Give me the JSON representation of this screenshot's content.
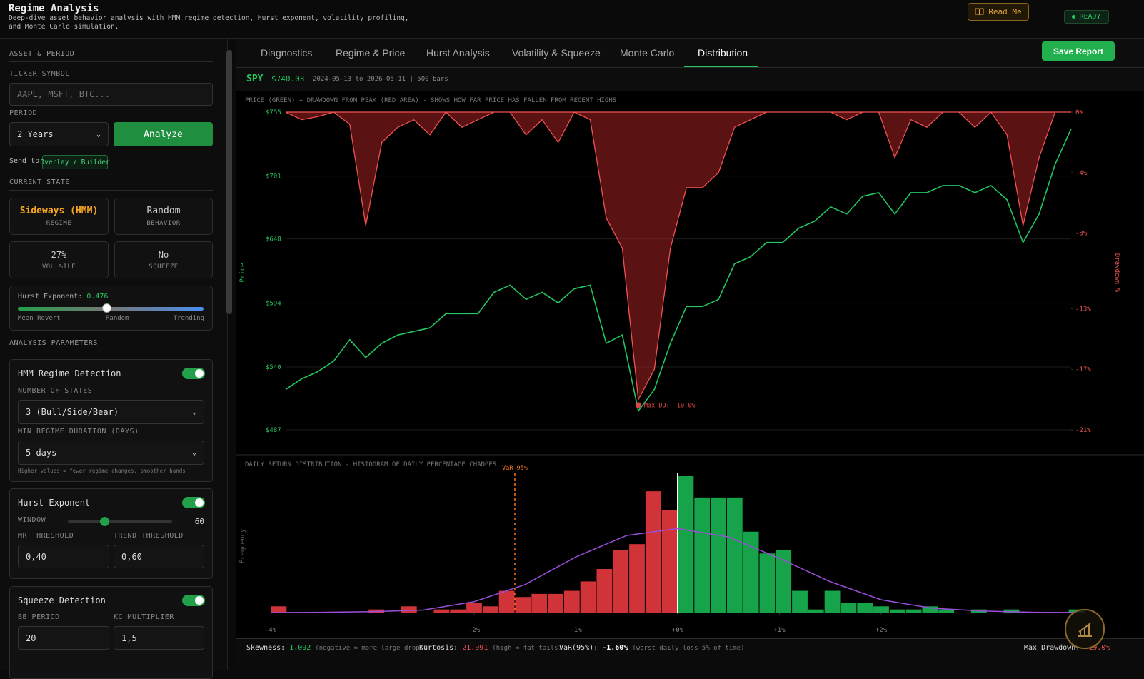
{
  "header": {
    "title": "Regime Analysis",
    "subtitle": "Deep-dive asset behavior analysis with HMM regime detection, Hurst exponent, volatility profiling, and Monte Carlo simulation.",
    "read_me": "Read Me",
    "status": "READY"
  },
  "sidebar": {
    "asset_heading": "ASSET & PERIOD",
    "ticker_label": "TICKER SYMBOL",
    "ticker_placeholder": "AAPL, MSFT, BTC...",
    "period_label": "PERIOD",
    "period": "2 Years",
    "analyze": "Analyze",
    "send_to": "Send to",
    "overlay": "Overlay / Builder",
    "state_heading": "CURRENT STATE",
    "cards": [
      {
        "value": "Sideways (HMM)",
        "label": "REGIME"
      },
      {
        "value": "Random",
        "label": "BEHAVIOR"
      },
      {
        "value": "27%",
        "label": "VOL %ILE"
      },
      {
        "value": "No",
        "label": "SQUEEZE"
      }
    ],
    "hurst": {
      "label": "Hurst Exponent:",
      "value": 0.476,
      "scale": [
        "Mean Revert",
        "Random",
        "Trending"
      ]
    },
    "params_heading": "ANALYSIS PARAMETERS",
    "hmm": {
      "title": "HMM Regime Detection",
      "states_label": "NUMBER OF STATES",
      "states": "3 (Bull/Side/Bear)",
      "duration_label": "MIN REGIME DURATION (DAYS)",
      "duration": "5 days",
      "note": "Higher values = fewer regime changes, smoother bands"
    },
    "hurst_params": {
      "title": "Hurst Exponent",
      "window_label": "WINDOW",
      "window": 60,
      "mr_label": "MR THRESHOLD",
      "mr": "0,40",
      "trend_label": "TREND THRESHOLD",
      "trend": "0,60"
    },
    "squeeze": {
      "title": "Squeeze Detection",
      "bb_label": "BB PERIOD",
      "bb": "20",
      "kc_label": "KC MULTIPLIER",
      "kc": "1,5"
    }
  },
  "tabs": [
    "Diagnostics",
    "Regime & Price",
    "Hurst Analysis",
    "Volatility & Squeeze",
    "Monte Carlo",
    "Distribution"
  ],
  "save_report": "Save Report",
  "ticker": {
    "symbol": "SPY",
    "price": "$740.03",
    "range": "2024-05-13 to 2026-05-11 | 500 bars"
  },
  "chart_data": [
    {
      "type": "line",
      "title": "PRICE (GREEN) + DRAWDOWN FROM PEAK (RED AREA) - SHOWS HOW FAR PRICE HAS FALLEN FROM RECENT HIGHS",
      "ylabel": "Price",
      "y2label": "Drawdown %",
      "ylim": [
        487,
        755
      ],
      "yticks": [
        {
          "value": 755,
          "label": "$755"
        },
        {
          "value": 701,
          "label": "$701"
        },
        {
          "value": 648,
          "label": "$648"
        },
        {
          "value": 594,
          "label": "$594"
        },
        {
          "value": 540,
          "label": "$540"
        },
        {
          "value": 487,
          "label": "$487"
        }
      ],
      "y2lim": [
        -21,
        0
      ],
      "y2ticks": [
        {
          "value": 0,
          "label": "0%"
        },
        {
          "value": -4,
          "label": "-4%"
        },
        {
          "value": -8,
          "label": "-8%"
        },
        {
          "value": -13,
          "label": "-13%"
        },
        {
          "value": -17,
          "label": "-17%"
        },
        {
          "value": -21,
          "label": "-21%"
        }
      ],
      "grid": true,
      "series": [
        {
          "color": "#22c55e",
          "values": [
            521,
            530,
            536,
            545,
            563,
            548,
            560,
            567,
            570,
            573,
            585,
            585,
            585,
            603,
            609,
            597,
            603,
            594,
            606,
            609,
            560,
            567,
            503,
            521,
            560,
            591,
            591,
            597,
            627,
            633,
            645,
            645,
            657,
            663,
            675,
            669,
            684,
            687,
            669,
            687,
            687,
            693,
            693,
            687,
            693,
            681,
            645,
            669,
            711,
            741
          ]
        },
        {
          "color": "#f05252",
          "axis": "y2",
          "values": [
            0,
            -0.5,
            -0.3,
            0,
            -0.8,
            -7.5,
            -2,
            -1,
            -0.5,
            -1.5,
            0,
            -1,
            -0.5,
            0,
            0,
            -1.5,
            -0.5,
            -2,
            0,
            -0.5,
            -7,
            -9,
            -19,
            -17,
            -9,
            -5,
            -5,
            -4,
            -1,
            -0.5,
            0,
            0,
            0,
            0,
            0,
            -0.5,
            0,
            0,
            -3,
            -0.5,
            -1,
            0,
            0,
            -1,
            0,
            -1.5,
            -7.5,
            -3,
            0,
            0
          ]
        }
      ],
      "annotation": "Max DD: -19.0%"
    },
    {
      "type": "histogram",
      "title": "DAILY RETURN DISTRIBUTION - HISTOGRAM OF DAILY PERCENTAGE CHANGES",
      "ylabel": "Frequency",
      "bins": [
        -4,
        -3.84,
        -3.68,
        -3.52,
        -3.36,
        -3.2,
        -3.04,
        -2.88,
        -2.72,
        -2.56,
        -2.4,
        -2.24,
        -2.08,
        -1.92,
        -1.76,
        -1.6,
        -1.44,
        -1.28,
        -1.12,
        -0.96,
        -0.8,
        -0.64,
        -0.48,
        -0.32,
        -0.16,
        0,
        0.16,
        0.32,
        0.48,
        0.64,
        0.8,
        0.96,
        1.12,
        1.28,
        1.44,
        1.6,
        1.76,
        1.92,
        2.08,
        2.24,
        2.4,
        2.56,
        2.72,
        2.88,
        3.04,
        3.2,
        3.36,
        3.52,
        3.68,
        3.84,
        4
      ],
      "values": [
        2,
        0,
        0,
        0,
        0,
        0,
        1,
        0,
        2,
        0,
        1,
        1,
        3,
        2,
        7,
        5,
        6,
        6,
        7,
        10,
        14,
        20,
        22,
        39,
        33,
        44,
        37,
        37,
        37,
        26,
        19,
        20,
        7,
        1,
        7,
        3,
        3,
        2,
        1,
        1,
        2,
        1,
        0,
        1,
        0,
        1,
        0,
        0,
        0,
        1
      ],
      "color_negative": "#d13438",
      "color_positive": "#16a34a",
      "xlim": [
        -4,
        4
      ],
      "ylim": [
        0,
        45
      ],
      "xticks": [
        {
          "value": -4,
          "label": "-4%"
        },
        {
          "value": -2,
          "label": "-2%"
        },
        {
          "value": -1,
          "label": "-1%"
        },
        {
          "value": 0,
          "label": "+0%"
        },
        {
          "value": 1,
          "label": "+1%"
        },
        {
          "value": 2,
          "label": "+2%"
        }
      ],
      "fit": {
        "color": "#9b4fd9",
        "x": [
          -4,
          -3.5,
          -3,
          -2.5,
          -2,
          -1.5,
          -1,
          -0.5,
          0,
          0.5,
          1,
          1.5,
          2,
          2.5,
          3,
          3.5,
          4
        ],
        "values": [
          0,
          0.1,
          0.3,
          0.8,
          3.5,
          9,
          17.9,
          24.8,
          27,
          24.3,
          17.4,
          9.9,
          4.1,
          1.4,
          0.5,
          0.1,
          0
        ]
      },
      "var_line": {
        "value": -1.6,
        "label": "VaR 95%",
        "color": "#f97316"
      }
    }
  ],
  "stats": [
    {
      "label": "Skewness:",
      "value": "1.092",
      "note": "(negative = more large drops)"
    },
    {
      "label": "Kurtosis:",
      "value": "21.991",
      "note": "(high = fat tails)"
    },
    {
      "label": "VaR(95%):",
      "value": "-1.60%",
      "note": "(worst daily loss 5% of time)"
    },
    {
      "label": "Max Drawdown:",
      "value": "-19.0%"
    }
  ]
}
